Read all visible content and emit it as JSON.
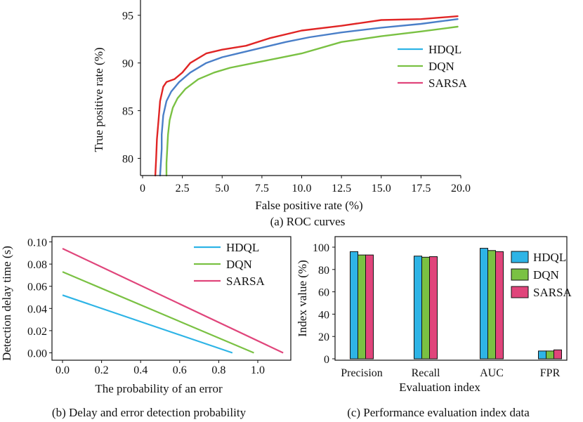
{
  "chart_data": [
    {
      "id": "roc",
      "type": "line",
      "caption": "(a) ROC curves",
      "xlabel": "False positive rate (%)",
      "ylabel": "True positive rate (%)",
      "xlim": [
        0,
        20
      ],
      "ylim": [
        78.2,
        96.6
      ],
      "xticks": [
        0,
        2.5,
        5.0,
        7.5,
        10.0,
        12.5,
        15.0,
        17.5,
        20.0
      ],
      "xtick_labels": [
        "0",
        "2.5",
        "5.0",
        "7.5",
        "10.0",
        "12.5",
        "15.0",
        "17.5",
        "20.0"
      ],
      "yticks": [
        80,
        85,
        90,
        95
      ],
      "ytick_labels": [
        "80",
        "85",
        "90",
        "95"
      ],
      "legend": [
        "HDQL",
        "DQN",
        "SARSA"
      ],
      "series": [
        {
          "name": "HDQL",
          "color": "#2eb4e6",
          "line_color": "#4a7fc8",
          "x": [
            1.1,
            1.15,
            1.2,
            1.2,
            1.3,
            1.5,
            1.8,
            2.3,
            3.0,
            4.0,
            5.0,
            6.0,
            7.5,
            9.0,
            10.5,
            12.5,
            15.0,
            17.5,
            19.8
          ],
          "y": [
            78.2,
            79.5,
            81.0,
            82.5,
            84.5,
            86.0,
            87.0,
            88.0,
            89.0,
            90.0,
            90.6,
            91.0,
            91.6,
            92.2,
            92.7,
            93.2,
            93.7,
            94.1,
            94.6
          ]
        },
        {
          "name": "DQN",
          "color": "#7ac143",
          "line_color": "#7ac143",
          "x": [
            1.5,
            1.5,
            1.55,
            1.6,
            1.7,
            1.9,
            2.2,
            2.7,
            3.5,
            4.5,
            5.5,
            7.0,
            8.5,
            10.0,
            12.5,
            15.0,
            17.5,
            19.8
          ],
          "y": [
            78.2,
            79.5,
            81.0,
            82.5,
            84.0,
            85.3,
            86.3,
            87.3,
            88.3,
            89.0,
            89.5,
            90.0,
            90.5,
            91.0,
            92.2,
            92.8,
            93.3,
            93.8
          ]
        },
        {
          "name": "SARSA",
          "color": "#e0457b",
          "line_color": "#e02525",
          "x": [
            0.8,
            0.85,
            0.9,
            1.0,
            1.1,
            1.3,
            1.5,
            2.0,
            2.5,
            3.0,
            4.0,
            5.0,
            6.5,
            8.0,
            10.0,
            12.5,
            15.0,
            17.5,
            19.8
          ],
          "y": [
            78.2,
            80.0,
            82.0,
            84.0,
            86.0,
            87.5,
            88.0,
            88.3,
            89.0,
            90.0,
            91.0,
            91.4,
            91.8,
            92.6,
            93.4,
            93.9,
            94.5,
            94.6,
            94.9
          ]
        }
      ]
    },
    {
      "id": "delay",
      "type": "line",
      "caption": "(b) Delay and error detection probability",
      "xlabel": "The probability of an error",
      "ylabel": "Detection delay time (s)",
      "xlim": [
        -0.05,
        1.15
      ],
      "ylim": [
        -0.005,
        0.102
      ],
      "xticks": [
        0.0,
        0.2,
        0.4,
        0.6,
        0.8,
        1.0
      ],
      "xtick_labels": [
        "0.0",
        "0.2",
        "0.4",
        "0.6",
        "0.8",
        "1.0"
      ],
      "yticks": [
        0.0,
        0.02,
        0.04,
        0.06,
        0.08,
        0.1
      ],
      "ytick_labels": [
        "0.00",
        "0.02",
        "0.04",
        "0.06",
        "0.08",
        "0.10"
      ],
      "legend": [
        "HDQL",
        "DQN",
        "SARSA"
      ],
      "series": [
        {
          "name": "HDQL",
          "color": "#2eb4e6",
          "x": [
            0.0,
            0.87
          ],
          "y": [
            0.052,
            0.0
          ]
        },
        {
          "name": "DQN",
          "color": "#7ac143",
          "x": [
            0.0,
            0.98
          ],
          "y": [
            0.073,
            0.0
          ]
        },
        {
          "name": "SARSA",
          "color": "#e0457b",
          "x": [
            0.0,
            1.13
          ],
          "y": [
            0.094,
            0.0
          ]
        }
      ]
    },
    {
      "id": "perf",
      "type": "bar",
      "caption": "(c) Performance evaluation index data",
      "xlabel": "Evaluation index",
      "ylabel": "Index value (%)",
      "ylim": [
        0,
        105
      ],
      "yticks": [
        0,
        20,
        40,
        60,
        80,
        100
      ],
      "ytick_labels": [
        "0",
        "20",
        "40",
        "60",
        "80",
        "100"
      ],
      "categories": [
        "Precision",
        "Recall",
        "AUC",
        "FPR"
      ],
      "legend": [
        "HDQL",
        "DQN",
        "SARSA"
      ],
      "series": [
        {
          "name": "HDQL",
          "color": "#2eb4e6",
          "values": [
            96,
            92,
            99,
            7
          ]
        },
        {
          "name": "DQN",
          "color": "#7ac143",
          "values": [
            93,
            91,
            97,
            7
          ]
        },
        {
          "name": "SARSA",
          "color": "#e0457b",
          "values": [
            93,
            91.5,
            96,
            8
          ]
        }
      ]
    }
  ]
}
